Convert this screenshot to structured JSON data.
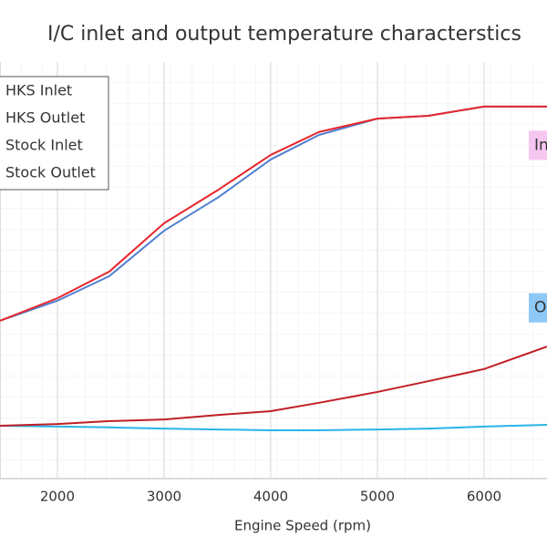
{
  "chart_data": {
    "type": "line",
    "title": "I/C inlet and output temperature characterstics",
    "x_label": "Engine Speed (rpm)",
    "x": [
      1462,
      2000,
      2487,
      3000,
      3513,
      4000,
      4453,
      5000,
      5479,
      6000,
      6590
    ],
    "xlim": [
      1462,
      6590
    ],
    "xticks": [
      2000,
      3000,
      4000,
      5000,
      6000
    ],
    "ylim": [
      0,
      100
    ],
    "grid": true,
    "legend": "upper left",
    "series": [
      {
        "name": "HKS Inlet",
        "color": "#4f7fd0",
        "values": [
          37.9,
          42.7,
          48.6,
          59.5,
          67.6,
          76.6,
          82.5,
          86.4,
          87.1,
          89.3,
          89.3
        ]
      },
      {
        "name": "HKS Outlet",
        "color": "#2ab4e6",
        "values": [
          12.7,
          12.5,
          12.3,
          12.0,
          11.8,
          11.6,
          11.6,
          11.8,
          12.0,
          12.5,
          12.9
        ]
      },
      {
        "name": "Stock Inlet",
        "color": "#e6262c",
        "values": [
          37.9,
          43.3,
          49.7,
          61.3,
          69.4,
          77.7,
          83.2,
          86.4,
          87.1,
          89.3,
          89.3
        ]
      },
      {
        "name": "Stock Outlet",
        "color": "#c01f26",
        "values": [
          12.7,
          13.1,
          13.8,
          14.2,
          15.3,
          16.2,
          18.2,
          20.8,
          23.4,
          26.3,
          31.7
        ]
      }
    ],
    "annotations": [
      {
        "text": "Inlet",
        "x": 6590,
        "y": 80,
        "color": "#f7c6f0"
      },
      {
        "text": "Outlet",
        "x": 6590,
        "y": 41,
        "color": "#8ec8f7"
      }
    ]
  }
}
